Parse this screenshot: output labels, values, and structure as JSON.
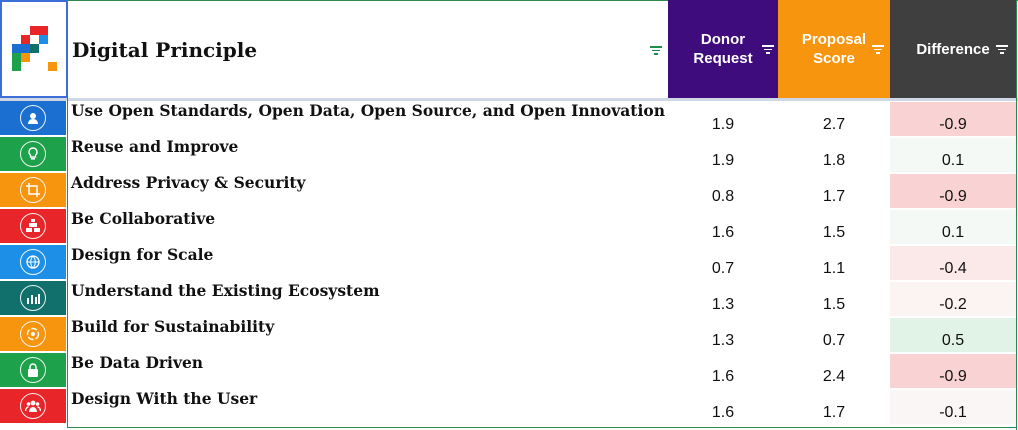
{
  "header": {
    "title": "Digital Principle",
    "columns": {
      "donor": "Donor Request",
      "donor_line1": "Donor",
      "donor_line2": "Request",
      "proposal_line1": "Proposal",
      "proposal_line2": "Score",
      "difference": "Difference"
    }
  },
  "colors": {
    "donor_header": "#3f0c7d",
    "proposal_header": "#f7950e",
    "difference_header": "#3f3f3f",
    "grid_green": "#2e8a4a"
  },
  "rows": [
    {
      "label": "Use Open Standards, Open Data, Open Source, and Open Innovation",
      "donor": "1.9",
      "proposal": "2.7",
      "difference": "-0.9",
      "icon": "open-standards-icon",
      "icon_bg": "#1a6fd0",
      "diff_bg": "#f9d3d3"
    },
    {
      "label": "Reuse and Improve",
      "donor": "1.9",
      "proposal": "1.8",
      "difference": "0.1",
      "icon": "lightbulb-icon",
      "icon_bg": "#1da14a",
      "diff_bg": "#f5f9f6"
    },
    {
      "label": "Address Privacy & Security",
      "donor": "0.8",
      "proposal": "1.7",
      "difference": "-0.9",
      "icon": "crop-icon",
      "icon_bg": "#f7950e",
      "diff_bg": "#f9d3d3"
    },
    {
      "label": "Be Collaborative",
      "donor": "1.6",
      "proposal": "1.5",
      "difference": "0.1",
      "icon": "bricks-icon",
      "icon_bg": "#e8262a",
      "diff_bg": "#f5f9f6"
    },
    {
      "label": "Design for Scale",
      "donor": "0.7",
      "proposal": "1.1",
      "difference": "-0.4",
      "icon": "globe-icon",
      "icon_bg": "#1d8fe6",
      "diff_bg": "#fbe9e9"
    },
    {
      "label": "Understand the Existing Ecosystem",
      "donor": "1.3",
      "proposal": "1.5",
      "difference": "-0.2",
      "icon": "bar-chart-icon",
      "icon_bg": "#11706b",
      "diff_bg": "#fcf3f3"
    },
    {
      "label": "Build for Sustainability",
      "donor": "1.3",
      "proposal": "0.7",
      "difference": "0.5",
      "icon": "sustainability-icon",
      "icon_bg": "#f7950e",
      "diff_bg": "#e1f2e6"
    },
    {
      "label": "Be Data Driven",
      "donor": "1.6",
      "proposal": "2.4",
      "difference": "-0.9",
      "icon": "lock-icon",
      "icon_bg": "#1da14a",
      "diff_bg": "#f9d3d3"
    },
    {
      "label": "Design With the User",
      "donor": "1.6",
      "proposal": "1.7",
      "difference": "-0.1",
      "icon": "users-icon",
      "icon_bg": "#e8262a",
      "diff_bg": "#fbf6f6"
    }
  ]
}
